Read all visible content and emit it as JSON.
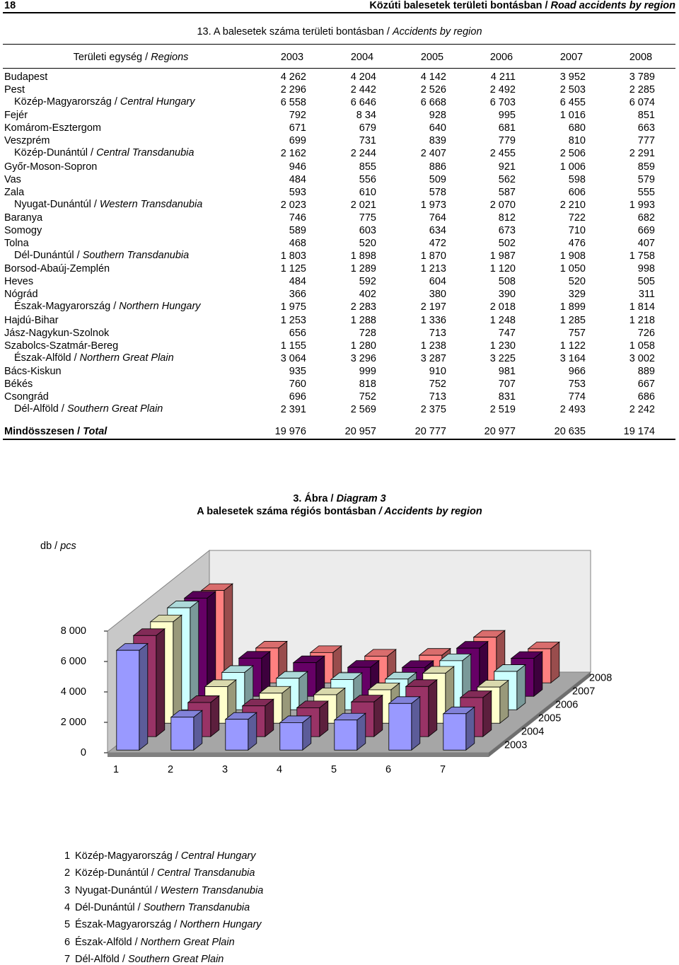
{
  "header": {
    "page": "18",
    "hu": "Közúti balesetek területi bontásban / ",
    "en": "Road accidents by region"
  },
  "table": {
    "title_hu": "13. A balesetek száma területi bontásban / ",
    "title_en": "Accidents by region",
    "head_hu": "Területi egység / ",
    "head_en": "Regions",
    "years": [
      "2003",
      "2004",
      "2005",
      "2006",
      "2007",
      "2008"
    ],
    "rows": [
      {
        "name": "Budapest",
        "values": [
          "4 262",
          "4 204",
          "4 142",
          "4 211",
          "3 952",
          "3 789"
        ]
      },
      {
        "name": "Pest",
        "values": [
          "2 296",
          "2 442",
          "2 526",
          "2 492",
          "2 503",
          "2 285"
        ]
      },
      {
        "hu": "Közép-Magyarország / ",
        "en": "Central Hungary",
        "values": [
          "6 558",
          "6 646",
          "6 668",
          "6 703",
          "6 455",
          "6 074"
        ]
      },
      {
        "name": "Fejér",
        "values": [
          "792",
          "8 34",
          "928",
          "995",
          "1 016",
          "851"
        ]
      },
      {
        "name": "Komárom-Esztergom",
        "values": [
          "671",
          "679",
          "640",
          "681",
          "680",
          "663"
        ]
      },
      {
        "name": "Veszprém",
        "values": [
          "699",
          "731",
          "839",
          "779",
          "810",
          "777"
        ]
      },
      {
        "hu": "Közép-Dunántúl / ",
        "en": "Central Transdanubia",
        "values": [
          "2 162",
          "2 244",
          "2 407",
          "2 455",
          "2 506",
          "2 291"
        ]
      },
      {
        "name": "Győr-Moson-Sopron",
        "values": [
          "946",
          "855",
          "886",
          "921",
          "1 006",
          "859"
        ]
      },
      {
        "name": "Vas",
        "values": [
          "484",
          "556",
          "509",
          "562",
          "598",
          "579"
        ]
      },
      {
        "name": "Zala",
        "values": [
          "593",
          "610",
          "578",
          "587",
          "606",
          "555"
        ]
      },
      {
        "hu": "Nyugat-Dunántúl / ",
        "en": "Western Transdanubia",
        "values": [
          "2 023",
          "2 021",
          "1 973",
          "2 070",
          "2 210",
          "1 993"
        ]
      },
      {
        "name": "Baranya",
        "values": [
          "746",
          "775",
          "764",
          "812",
          "722",
          "682"
        ]
      },
      {
        "name": "Somogy",
        "values": [
          "589",
          "603",
          "634",
          "673",
          "710",
          "669"
        ]
      },
      {
        "name": "Tolna",
        "values": [
          "468",
          "520",
          "472",
          "502",
          "476",
          "407"
        ]
      },
      {
        "hu": "Dél-Dunántúl / ",
        "en": "Southern Transdanubia",
        "values": [
          "1 803",
          "1 898",
          "1 870",
          "1 987",
          "1 908",
          "1 758"
        ]
      },
      {
        "name": "Borsod-Abaúj-Zemplén",
        "values": [
          "1 125",
          "1 289",
          "1 213",
          "1 120",
          "1 050",
          "998"
        ]
      },
      {
        "name": "Heves",
        "values": [
          "484",
          "592",
          "604",
          "508",
          "520",
          "505"
        ]
      },
      {
        "name": "Nógrád",
        "values": [
          "366",
          "402",
          "380",
          "390",
          "329",
          "311"
        ]
      },
      {
        "hu": "Észak-Magyarország / ",
        "en": "Northern Hungary",
        "values": [
          "1 975",
          "2 283",
          "2 197",
          "2 018",
          "1 899",
          "1 814"
        ]
      },
      {
        "name": "Hajdú-Bihar",
        "values": [
          "1 253",
          "1 288",
          "1 336",
          "1 248",
          "1 285",
          "1 218"
        ]
      },
      {
        "name": "Jász-Nagykun-Szolnok",
        "values": [
          "656",
          "728",
          "713",
          "747",
          "757",
          "726"
        ]
      },
      {
        "name": "Szabolcs-Szatmár-Bereg",
        "values": [
          "1 155",
          "1 280",
          "1 238",
          "1 230",
          "1 122",
          "1 058"
        ]
      },
      {
        "hu": "Észak-Alföld / ",
        "en": "Northern Great Plain",
        "values": [
          "3 064",
          "3 296",
          "3 287",
          "3 225",
          "3 164",
          "3 002"
        ]
      },
      {
        "name": "Bács-Kiskun",
        "values": [
          "935",
          "999",
          "910",
          "981",
          "966",
          "889"
        ]
      },
      {
        "name": "Békés",
        "values": [
          "760",
          "818",
          "752",
          "707",
          "753",
          "667"
        ]
      },
      {
        "name": "Csongrád",
        "values": [
          "696",
          "752",
          "713",
          "831",
          "774",
          "686"
        ]
      },
      {
        "hu": "Dél-Alföld / ",
        "en": "Southern Great Plain",
        "values": [
          "2 391",
          "2 569",
          "2 375",
          "2 519",
          "2 493",
          "2 242"
        ]
      }
    ],
    "total": {
      "hu": "Mindösszesen / ",
      "en": "Total",
      "values": [
        "19 976",
        "20 957",
        "20 777",
        "20 977",
        "20 635",
        "19 174"
      ]
    }
  },
  "chart_data": {
    "type": "bar3d",
    "title1_hu": "3. Ábra / ",
    "title1_en": "Diagram 3",
    "title2_hu": "A balesetek száma régiós bontásban ",
    "title2_en": "/ Accidents by region",
    "ylabel_hu": "db / ",
    "ylabel_en": "pcs",
    "categories": [
      "1",
      "2",
      "3",
      "4",
      "5",
      "6",
      "7"
    ],
    "series": [
      {
        "name": "2003",
        "color": "#9999ff",
        "values": [
          6558,
          2162,
          2023,
          1803,
          1975,
          3064,
          2391
        ]
      },
      {
        "name": "2004",
        "color": "#993366",
        "values": [
          6646,
          2244,
          2021,
          1898,
          2283,
          3296,
          2569
        ]
      },
      {
        "name": "2005",
        "color": "#ffffcc",
        "values": [
          6668,
          2407,
          1973,
          1870,
          2197,
          3287,
          2375
        ]
      },
      {
        "name": "2006",
        "color": "#ccffff",
        "values": [
          6703,
          2455,
          2070,
          1987,
          2018,
          3225,
          2519
        ]
      },
      {
        "name": "2007",
        "color": "#660066",
        "values": [
          6455,
          2506,
          2210,
          1908,
          1899,
          3164,
          2493
        ]
      },
      {
        "name": "2008",
        "color": "#ff8080",
        "values": [
          6074,
          2291,
          1993,
          1758,
          1814,
          3002,
          2242
        ]
      }
    ],
    "ylim": [
      0,
      8000
    ],
    "yticks": [
      0,
      {
        "value": 2000,
        "label": "2 000"
      },
      {
        "value": 4000,
        "label": "4 000"
      },
      {
        "value": 6000,
        "label": "6 000"
      },
      {
        "value": 8000,
        "label": "8 000"
      }
    ],
    "legend": [
      {
        "hu": "Közép-Magyarország / ",
        "en": "Central Hungary"
      },
      {
        "hu": "Közép-Dunántúl / ",
        "en": "Central Transdanubia"
      },
      {
        "hu": "Nyugat-Dunántúl / ",
        "en": "Western Transdanubia"
      },
      {
        "hu": "Dél-Dunántúl / ",
        "en": "Southern Transdanubia"
      },
      {
        "hu": "Észak-Magyarország / ",
        "en": "Northern Hungary"
      },
      {
        "hu": "Észak-Alföld / ",
        "en": "Northern Great Plain"
      },
      {
        "hu": "Dél-Alföld / ",
        "en": "Southern Great Plain"
      }
    ]
  }
}
